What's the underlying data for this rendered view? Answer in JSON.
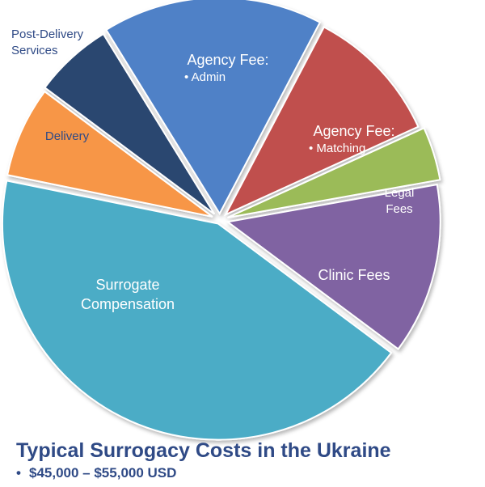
{
  "chart_data": {
    "type": "pie",
    "title": "Typical Surrogacy Costs in the Ukraine",
    "subtitle": "$45,000 – $55,000 USD",
    "slices": [
      {
        "label": "Agency Fee:",
        "sublabel": "• Admin",
        "value": 16.5,
        "color": "#4f81c7"
      },
      {
        "label": "Agency Fee:",
        "sublabel": "• Matching",
        "value": 10.5,
        "color": "#c0504d"
      },
      {
        "label": "Legal",
        "sublabel": "Fees",
        "value": 4,
        "color": "#9bbb59"
      },
      {
        "label": "Clinic Fees",
        "sublabel": "",
        "value": 13,
        "color": "#8064a2"
      },
      {
        "label": "Surrogate",
        "sublabel": "Compensation",
        "value": 43,
        "color": "#4bacc6"
      },
      {
        "label": "Delivery",
        "sublabel": "",
        "value": 7,
        "color": "#f79646"
      },
      {
        "label": "Post-Delivery",
        "sublabel": "Services",
        "value": 6,
        "color": "#2c4770"
      }
    ]
  }
}
